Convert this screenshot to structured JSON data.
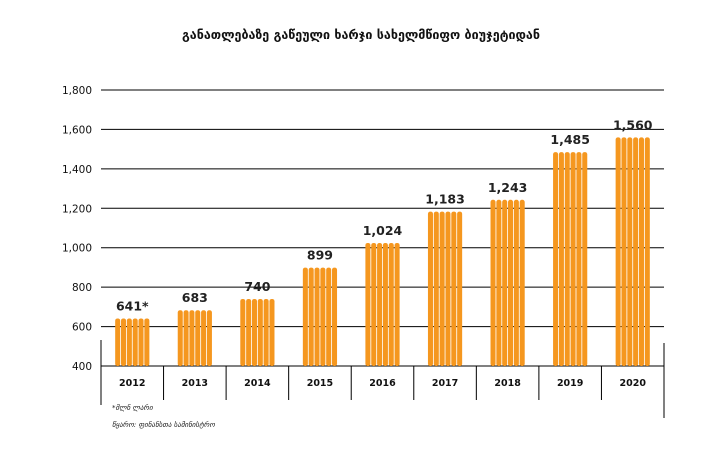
{
  "chart_data": {
    "type": "bar",
    "title": "განათლებაზე გაწეული ხარჯი სახელმწიფო ბიუჯეტიდან",
    "categories": [
      "2012",
      "2013",
      "2014",
      "2015",
      "2016",
      "2017",
      "2018",
      "2019",
      "2020"
    ],
    "values": [
      641,
      683,
      740,
      899,
      1024,
      1183,
      1243,
      1485,
      1560
    ],
    "data_labels": [
      "641*",
      "683",
      "740",
      "899",
      "1,024",
      "1,183",
      "1,243",
      "1,485",
      "1,560"
    ],
    "y_ticks": [
      "400",
      "600",
      "800",
      "1,000",
      "1,200",
      "1,400",
      "1,600",
      "1,800"
    ],
    "ylim": [
      400,
      1800
    ],
    "grid": true,
    "bar_color": "#f5971f",
    "grid_color": "#000000"
  },
  "footnotes": {
    "note": "*მლნ ლარი",
    "source": "წყარო: ფინანსთა სამინისტრო"
  }
}
